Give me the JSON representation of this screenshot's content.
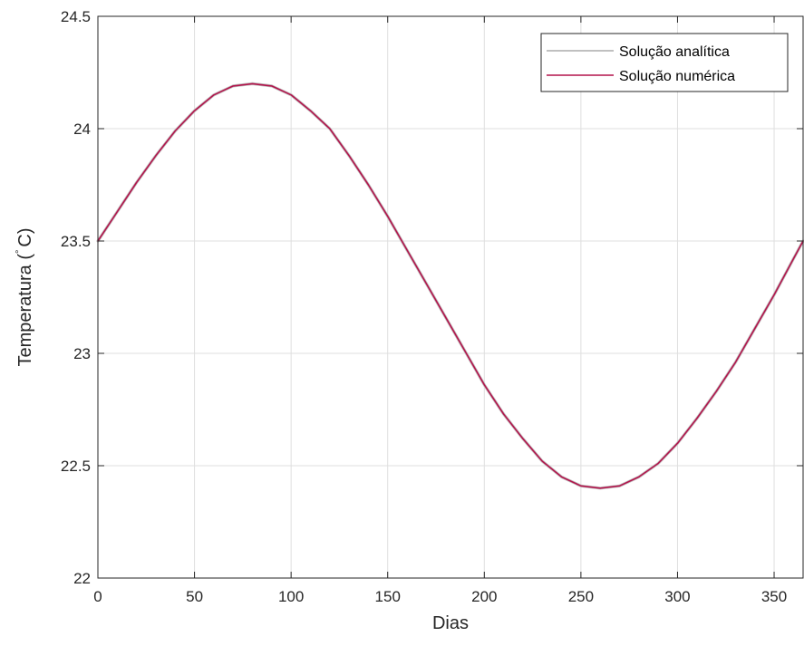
{
  "chart_data": {
    "type": "line",
    "xlabel": "Dias",
    "ylabel": "Temperatura (",
    "ylabel_unit": "C)",
    "ylabel_degree": "°",
    "xlim": [
      0,
      365
    ],
    "ylim": [
      22,
      24.5
    ],
    "xticks": [
      0,
      50,
      100,
      150,
      200,
      250,
      300,
      350
    ],
    "yticks": [
      22,
      22.5,
      23,
      23.5,
      24,
      24.5
    ],
    "xtick_labels": [
      "0",
      "50",
      "100",
      "150",
      "200",
      "250",
      "300",
      "350"
    ],
    "ytick_labels": [
      "22",
      "22.5",
      "23",
      "23.5",
      "24",
      "24.5"
    ],
    "grid": true,
    "legend_position": "top-right",
    "series": [
      {
        "name": "Solução analítica",
        "color": "#c0c0c0",
        "x": [
          0,
          10,
          20,
          30,
          40,
          50,
          60,
          70,
          80,
          90,
          100,
          110,
          120,
          130,
          140,
          150,
          160,
          170,
          180,
          190,
          200,
          210,
          220,
          230,
          240,
          250,
          260,
          270,
          280,
          290,
          300,
          310,
          320,
          330,
          340,
          350,
          360,
          365
        ],
        "y": [
          23.5,
          23.63,
          23.76,
          23.88,
          23.99,
          24.08,
          24.15,
          24.19,
          24.2,
          24.19,
          24.15,
          24.08,
          24.0,
          23.88,
          23.75,
          23.61,
          23.46,
          23.31,
          23.16,
          23.01,
          22.86,
          22.73,
          22.62,
          22.52,
          22.45,
          22.41,
          22.4,
          22.41,
          22.45,
          22.51,
          22.6,
          22.71,
          22.83,
          22.96,
          23.11,
          23.26,
          23.42,
          23.5
        ]
      },
      {
        "name": "Solução numérica",
        "color": "#b3134b",
        "x": [
          0,
          10,
          20,
          30,
          40,
          50,
          60,
          70,
          80,
          90,
          100,
          110,
          120,
          130,
          140,
          150,
          160,
          170,
          180,
          190,
          200,
          210,
          220,
          230,
          240,
          250,
          260,
          270,
          280,
          290,
          300,
          310,
          320,
          330,
          340,
          350,
          360,
          365
        ],
        "y": [
          23.5,
          23.63,
          23.76,
          23.88,
          23.99,
          24.08,
          24.15,
          24.19,
          24.2,
          24.19,
          24.15,
          24.08,
          24.0,
          23.88,
          23.75,
          23.61,
          23.46,
          23.31,
          23.16,
          23.01,
          22.86,
          22.73,
          22.62,
          22.52,
          22.45,
          22.41,
          22.4,
          22.41,
          22.45,
          22.51,
          22.6,
          22.71,
          22.83,
          22.96,
          23.11,
          23.26,
          23.42,
          23.5
        ]
      }
    ]
  }
}
